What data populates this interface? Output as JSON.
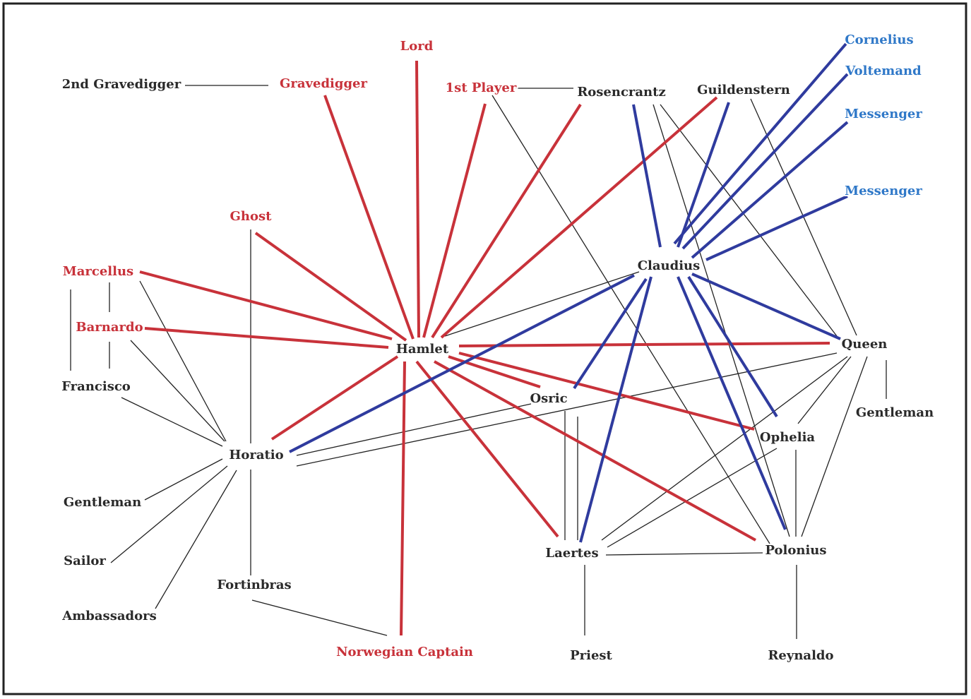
{
  "nodes": [
    {
      "label": "Lord"
    },
    {
      "label": "2nd Gravedigger"
    },
    {
      "label": "Gravedigger"
    },
    {
      "label": "1st Player"
    },
    {
      "label": "Rosencrantz"
    },
    {
      "label": "Guildenstern"
    },
    {
      "label": "Cornelius"
    },
    {
      "label": "Voltemand"
    },
    {
      "label": "Messenger"
    },
    {
      "label": "Messenger"
    },
    {
      "label": "Ghost"
    },
    {
      "label": "Marcellus"
    },
    {
      "label": "Barnardo"
    },
    {
      "label": "Claudius"
    },
    {
      "label": "Hamlet"
    },
    {
      "label": "Queen"
    },
    {
      "label": "Francisco"
    },
    {
      "label": "Osric"
    },
    {
      "label": "Gentleman"
    },
    {
      "label": "Ophelia"
    },
    {
      "label": "Horatio"
    },
    {
      "label": "Gentleman"
    },
    {
      "label": "Sailor"
    },
    {
      "label": "Laertes"
    },
    {
      "label": "Polonius"
    },
    {
      "label": "Fortinbras"
    },
    {
      "label": "Ambassadors"
    },
    {
      "label": "Norwegian Captain"
    },
    {
      "label": "Priest"
    },
    {
      "label": "Reynaldo"
    }
  ]
}
